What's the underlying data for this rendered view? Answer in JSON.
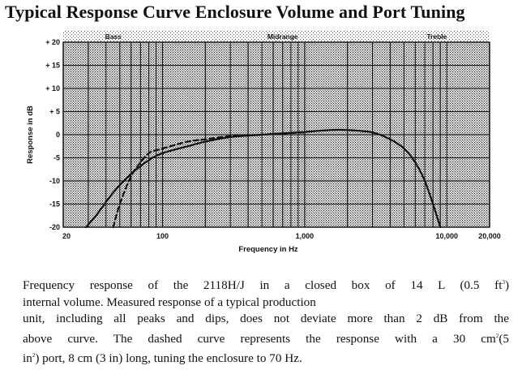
{
  "page": {
    "title": "Typical Response Curve Enclosure Volume and Port Tuning"
  },
  "chart_data": {
    "type": "line",
    "title": "Typical Response Curve Enclosure Volume and Port Tuning",
    "xlabel": "Frequency in Hz",
    "ylabel": "Response in dB",
    "x_scale": "log",
    "xlim": [
      20,
      20000
    ],
    "ylim": [
      -20,
      20
    ],
    "x_ticks": [
      {
        "value": 20,
        "label": "20"
      },
      {
        "value": 100,
        "label": "100"
      },
      {
        "value": 1000,
        "label": "1,000"
      },
      {
        "value": 10000,
        "label": "10,000"
      },
      {
        "value": 20000,
        "label": "20,000"
      }
    ],
    "y_ticks": [
      {
        "value": 20,
        "label": "+ 20"
      },
      {
        "value": 15,
        "label": "+ 15"
      },
      {
        "value": 10,
        "label": "+ 10"
      },
      {
        "value": 5,
        "label": "+ 5"
      },
      {
        "value": 0,
        "label": "0"
      },
      {
        "value": -5,
        "label": "-5"
      },
      {
        "value": -10,
        "label": "-10"
      },
      {
        "value": -15,
        "label": "-15"
      },
      {
        "value": -20,
        "label": "-20"
      }
    ],
    "bands": [
      {
        "label": "Bass",
        "at": 45
      },
      {
        "label": "Midrange",
        "at": 700
      },
      {
        "label": "Treble",
        "at": 8500
      }
    ],
    "grid": true,
    "background": "stippled",
    "series": [
      {
        "style": "solid",
        "x": [
          29,
          35,
          45,
          60,
          80,
          100,
          150,
          200,
          300,
          500,
          700,
          1000,
          1500,
          2000,
          3000,
          4000,
          5000,
          6000,
          7000,
          8000,
          9000
        ],
        "y": [
          -20,
          -17,
          -12.5,
          -8.5,
          -5.5,
          -4,
          -2.5,
          -1.5,
          -0.5,
          0,
          0.3,
          0.6,
          1,
          1,
          0.5,
          -1,
          -3,
          -6,
          -10,
          -15,
          -20
        ]
      },
      {
        "style": "dashed",
        "x": [
          45,
          50,
          60,
          70,
          80,
          100,
          150,
          200,
          300,
          500,
          1000
        ],
        "y": [
          -20,
          -15,
          -9,
          -6,
          -4,
          -3,
          -1.5,
          -1,
          -0.3,
          0,
          0.5
        ]
      }
    ],
    "colors": {
      "ink": "#111111",
      "paper": "#ffffff"
    }
  },
  "caption": {
    "line1": "Frequency response of the 2118H/J in a closed box of 14 L (0.5 ft",
    "line1_sup": "3",
    "line1_end": ")",
    "line2": "internal volume. Measured response of a typical production",
    "line3": "unit, including all peaks and dips, does not deviate more than 2 dB from the",
    "line4": "above curve. The dashed curve represents the response with a 30 cm",
    "line4_sup": "2",
    "line4_end": "(5",
    "line5": "in",
    "line5_sup": "2",
    "line5_end": ") port, 8 cm (3 in) long, tuning the enclosure to 70 Hz."
  }
}
